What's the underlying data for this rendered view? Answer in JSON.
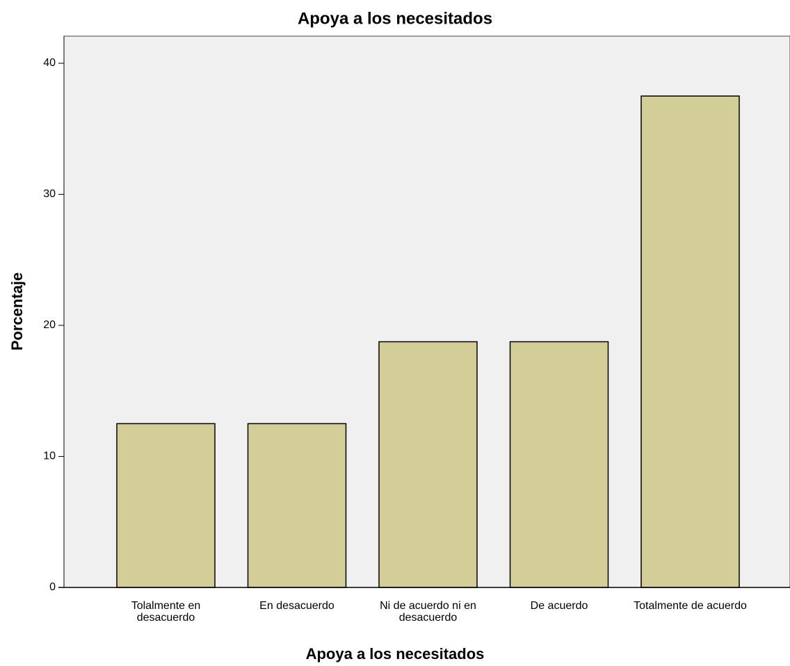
{
  "chart_data": {
    "type": "bar",
    "title": "Apoya a los necesitados",
    "x_label": "Apoya a los necesitados",
    "y_label": "Porcentaje",
    "categories": [
      "Tolalmente en desacuerdo",
      "En desacuerdo",
      "Ni de acuerdo ni en desacuerdo",
      "De acuerdo",
      "Totalmente de acuerdo"
    ],
    "values": [
      12.5,
      12.5,
      18.75,
      18.75,
      37.5
    ],
    "color": "#d3ce97",
    "ylim": [
      0,
      42.07
    ],
    "yticks": [
      0,
      10,
      20,
      30,
      40
    ],
    "grid": false
  }
}
